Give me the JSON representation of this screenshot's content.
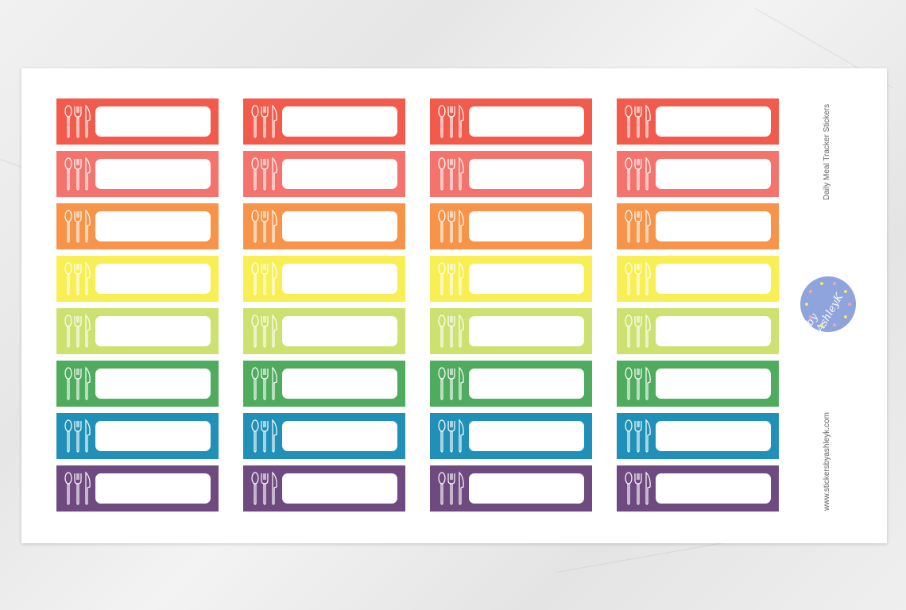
{
  "sheet": {
    "title": "Daily Meal Tracker Stickers",
    "website": "www.stickersbyashleyk.com",
    "logo_text": "by AshleyK",
    "columns": 4,
    "row_colors": [
      "#f25a4b",
      "#f4736c",
      "#f7944a",
      "#f8ef55",
      "#cde171",
      "#4fab5d",
      "#2190b8",
      "#6e4a80"
    ],
    "sticker_icon": "cutlery-icon",
    "logo_color": "#8fa3dc"
  }
}
